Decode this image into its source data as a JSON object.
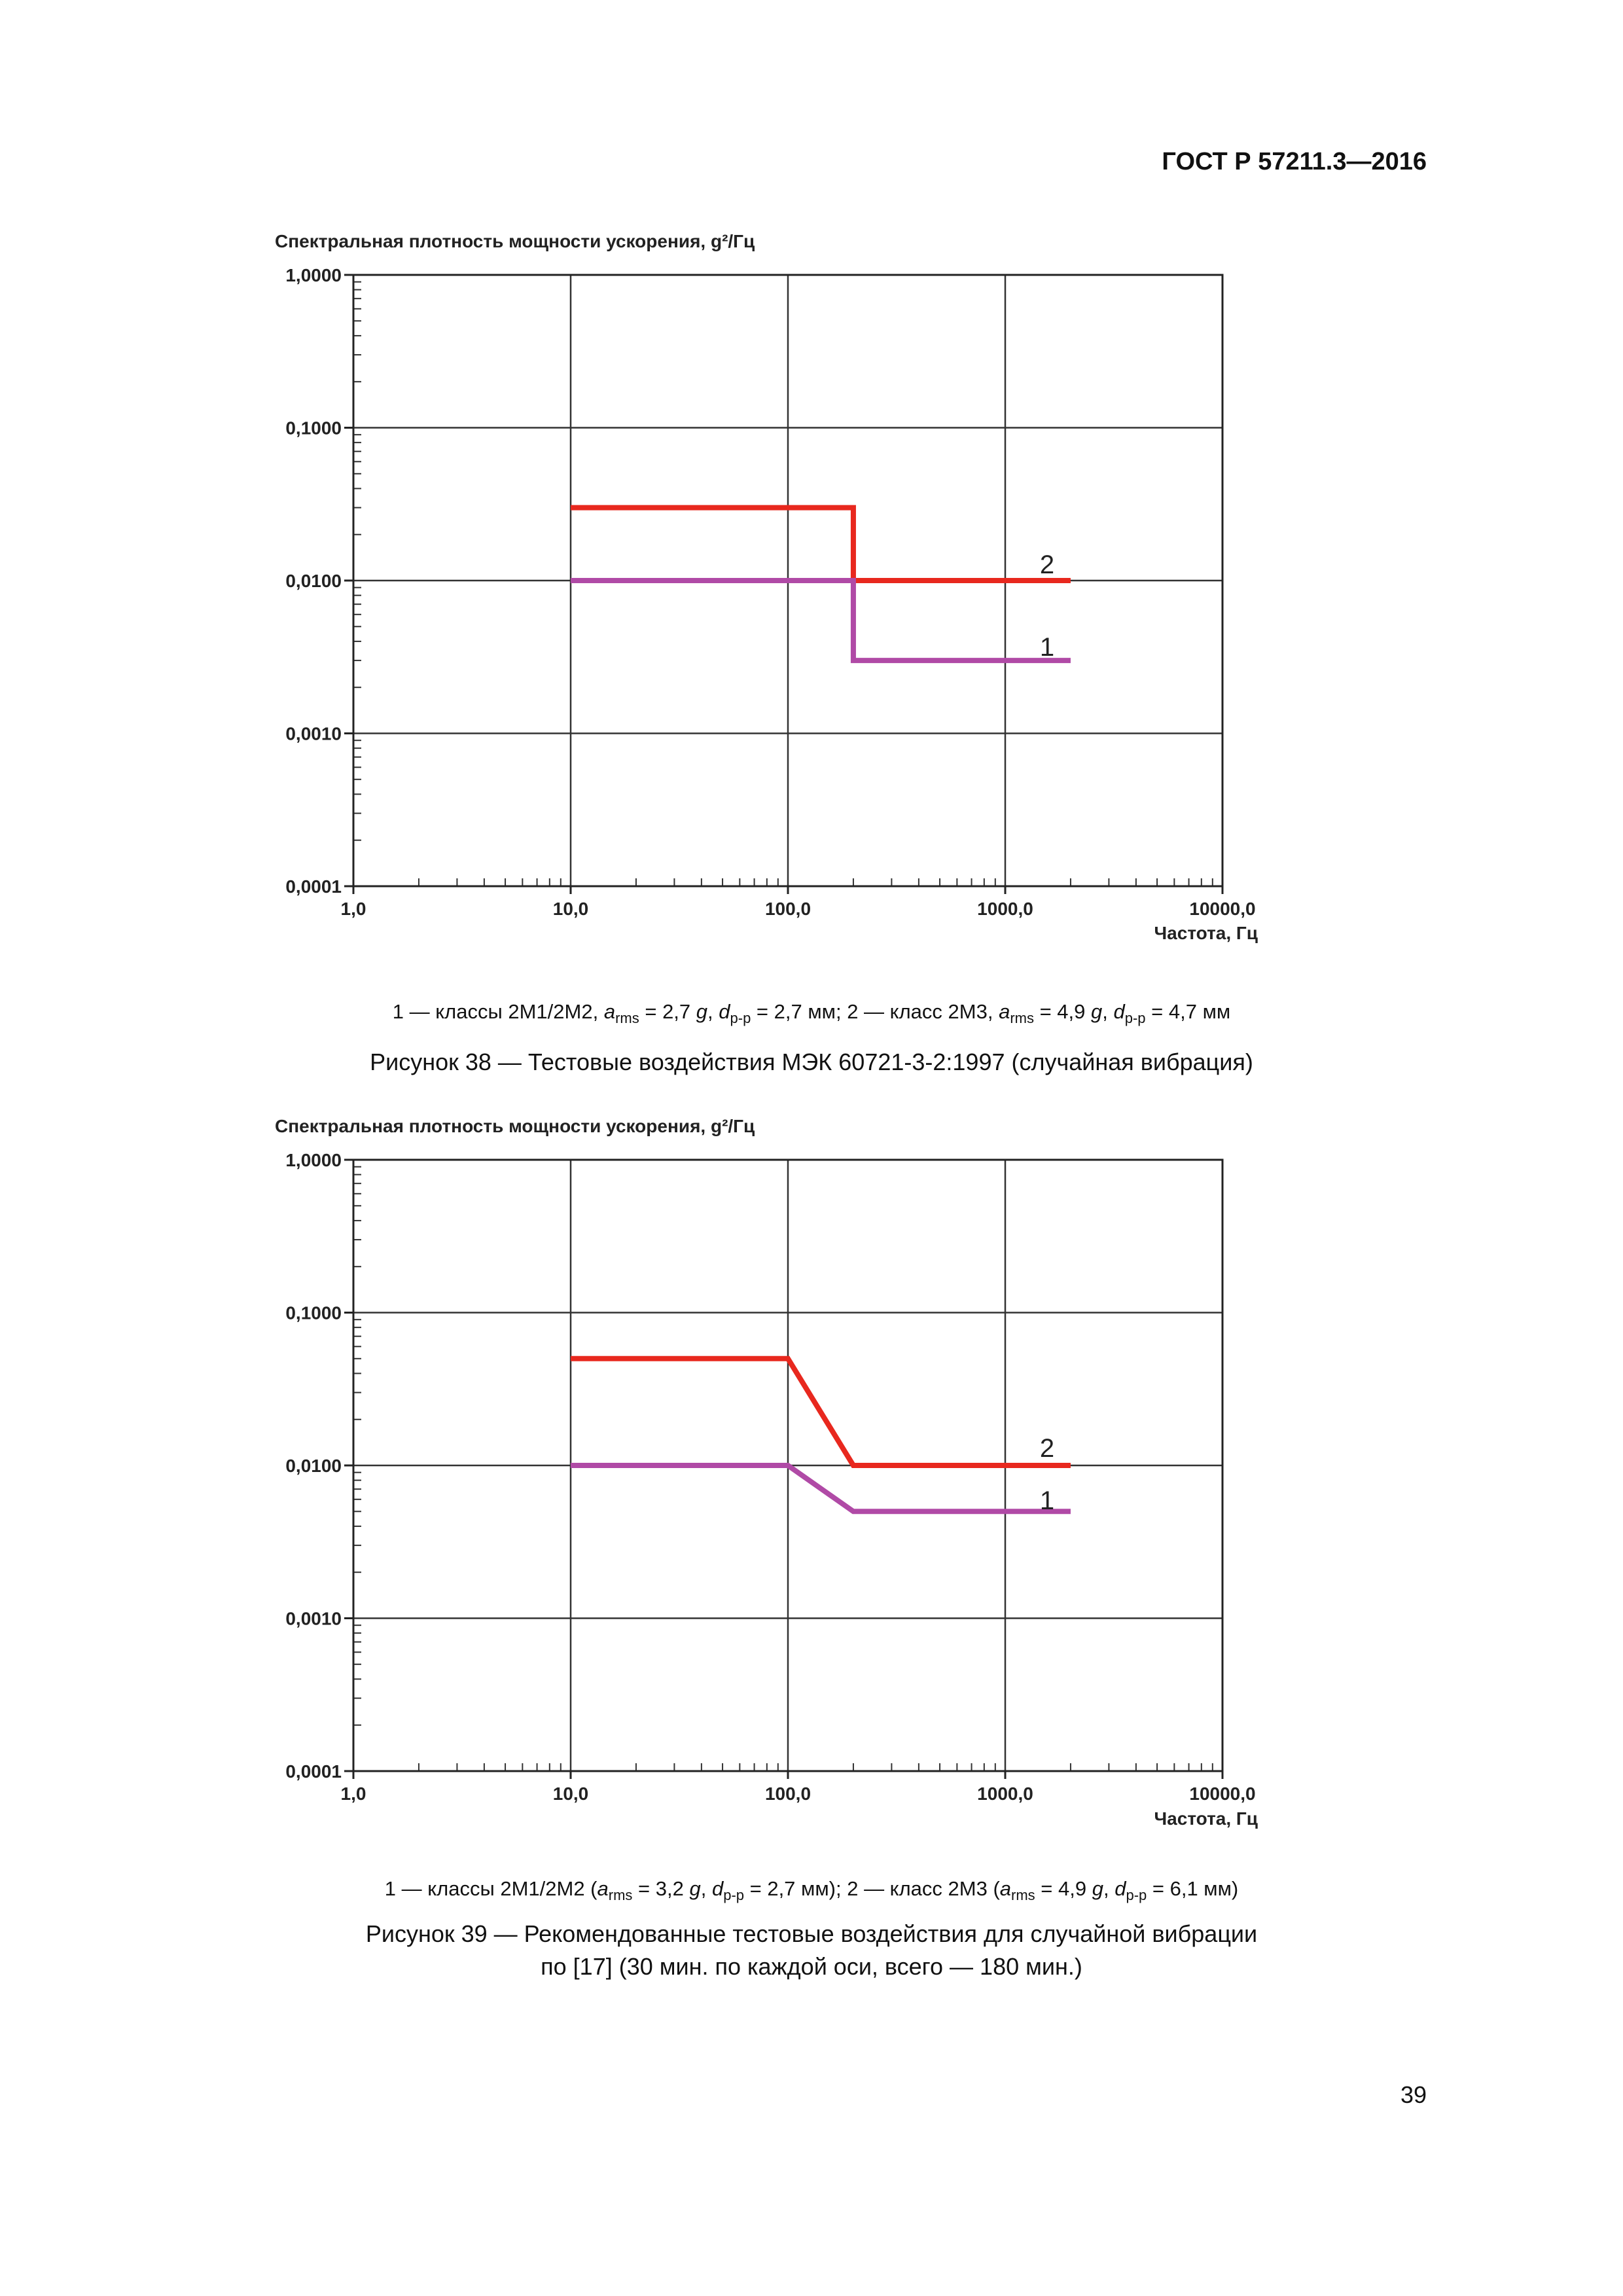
{
  "header": {
    "doc_id": "ГОСТ Р 57211.3—2016"
  },
  "page_number": "39",
  "figures": [
    {
      "legend": {
        "s1_label": "1 — классы 2М1/2М2, ",
        "s1_a": "a",
        "s1_a_sub": "rms",
        "s1_a_val": " = 2,7 ",
        "s1_g": "g",
        "s1_sep": ", ",
        "s1_d": "d",
        "s1_d_sub": "p-p",
        "s1_d_val": " = 2,7 мм; ",
        "s2_label": "2 — класс 2М3, ",
        "s2_a": "a",
        "s2_a_sub": "rms",
        "s2_a_val": " = 4,9 ",
        "s2_g": "g",
        "s2_sep": ", ",
        "s2_d": "d",
        "s2_d_sub": "p-p",
        "s2_d_val": " = 4,7 мм"
      },
      "caption_line1": "Рисунок 38 — Тестовые воздействия МЭК 60721-3-2:1997 (случайная вибрация)",
      "caption_line2": ""
    },
    {
      "legend": {
        "s1_label": "1 — классы 2М1/2М2 (",
        "s1_a": "a",
        "s1_a_sub": "rms",
        "s1_a_val": " = 3,2 ",
        "s1_g": "g",
        "s1_sep": ", ",
        "s1_d": "d",
        "s1_d_sub": "p-p",
        "s1_d_val": " = 2,7 мм); ",
        "s2_label": "2 — класс 2М3 (",
        "s2_a": "a",
        "s2_a_sub": "rms",
        "s2_a_val": " = 4,9 ",
        "s2_g": "g",
        "s2_sep": ", ",
        "s2_d": "d",
        "s2_d_sub": "p-p",
        "s2_d_val": " = 6,1 мм)"
      },
      "caption_line1": "Рисунок 39 — Рекомендованные тестовые воздействия для случайной вибрации",
      "caption_line2": "по [17] (30 мин. по каждой оси, всего — 180 мин.)"
    }
  ],
  "chart_data": [
    {
      "type": "line",
      "title": "",
      "ylabel": "Спектральная плотность мощности ускорения, g²/Гц",
      "xlabel": "Частота, Гц",
      "x_scale": "log",
      "y_scale": "log",
      "xlim": [
        1,
        10000
      ],
      "ylim": [
        0.0001,
        1
      ],
      "x_ticks": [
        1,
        10,
        100,
        1000,
        10000
      ],
      "x_tick_labels": [
        "1,0",
        "10,0",
        "100,0",
        "1000,0",
        "10000,0"
      ],
      "y_ticks": [
        0.0001,
        0.001,
        0.01,
        0.1,
        1
      ],
      "y_tick_labels": [
        "0,0001",
        "0,0010",
        "0,0100",
        "0,1000",
        "1,0000"
      ],
      "grid": true,
      "series": [
        {
          "name": "1",
          "color": "#b04aa6",
          "points": [
            [
              10,
              0.01
            ],
            [
              200,
              0.01
            ],
            [
              200,
              0.003
            ],
            [
              2000,
              0.003
            ]
          ]
        },
        {
          "name": "2",
          "color": "#e8281e",
          "points": [
            [
              10,
              0.03
            ],
            [
              200,
              0.03
            ],
            [
              200,
              0.01
            ],
            [
              2000,
              0.01
            ]
          ]
        }
      ]
    },
    {
      "type": "line",
      "title": "",
      "ylabel": "Спектральная плотность мощности ускорения, g²/Гц",
      "xlabel": "Частота, Гц",
      "x_scale": "log",
      "y_scale": "log",
      "xlim": [
        1,
        10000
      ],
      "ylim": [
        0.0001,
        1
      ],
      "x_ticks": [
        1,
        10,
        100,
        1000,
        10000
      ],
      "x_tick_labels": [
        "1,0",
        "10,0",
        "100,0",
        "1000,0",
        "10000,0"
      ],
      "y_ticks": [
        0.0001,
        0.001,
        0.01,
        0.1,
        1
      ],
      "y_tick_labels": [
        "0,0001",
        "0,0010",
        "0,0100",
        "0,1000",
        "1,0000"
      ],
      "grid": true,
      "series": [
        {
          "name": "1",
          "color": "#b04aa6",
          "points": [
            [
              10,
              0.01
            ],
            [
              100,
              0.01
            ],
            [
              200,
              0.005
            ],
            [
              2000,
              0.005
            ]
          ]
        },
        {
          "name": "2",
          "color": "#e8281e",
          "points": [
            [
              10,
              0.05
            ],
            [
              100,
              0.05
            ],
            [
              200,
              0.01
            ],
            [
              2000,
              0.01
            ]
          ]
        }
      ]
    }
  ]
}
